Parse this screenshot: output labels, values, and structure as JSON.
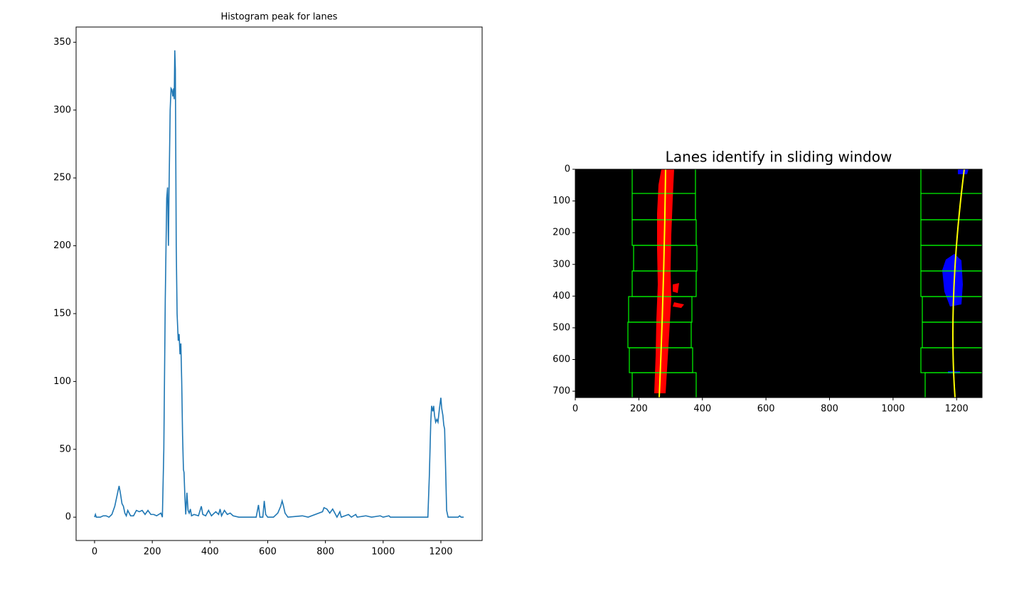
{
  "chart_data": [
    {
      "type": "line",
      "title": "Histogram peak for lanes",
      "color": "#1f77b4",
      "x": [
        0,
        3,
        6,
        20,
        30,
        40,
        50,
        60,
        70,
        80,
        85,
        90,
        95,
        100,
        105,
        110,
        115,
        120,
        125,
        135,
        145,
        155,
        165,
        175,
        185,
        195,
        205,
        215,
        230,
        235,
        240,
        245,
        250,
        253,
        256,
        258,
        262,
        265,
        268,
        271,
        274,
        276,
        278,
        280,
        283,
        286,
        290,
        293,
        296,
        299,
        302,
        305,
        308,
        310,
        313,
        316,
        320,
        324,
        328,
        332,
        336,
        345,
        360,
        370,
        375,
        385,
        395,
        405,
        420,
        430,
        435,
        440,
        450,
        460,
        470,
        480,
        500,
        560,
        568,
        573,
        583,
        588,
        593,
        600,
        620,
        635,
        645,
        650,
        655,
        660,
        670,
        720,
        740,
        790,
        795,
        805,
        815,
        825,
        830,
        840,
        850,
        855,
        880,
        890,
        905,
        910,
        940,
        960,
        990,
        1000,
        1020,
        1025,
        1155,
        1160,
        1165,
        1168,
        1172,
        1175,
        1178,
        1182,
        1186,
        1190,
        1195,
        1200,
        1203,
        1207,
        1210,
        1213,
        1216,
        1220,
        1225,
        1260,
        1265,
        1270,
        1279
      ],
      "values": [
        0,
        2,
        0,
        0,
        1,
        1,
        0,
        2,
        8,
        18,
        23,
        17,
        10,
        8,
        3,
        1,
        5,
        3,
        1,
        1,
        5,
        4,
        5,
        2,
        5,
        2,
        2,
        1,
        3,
        0,
        50,
        160,
        235,
        243,
        200,
        240,
        300,
        316,
        315,
        310,
        316,
        308,
        344,
        330,
        200,
        150,
        130,
        135,
        120,
        128,
        100,
        60,
        35,
        33,
        15,
        2,
        18,
        5,
        3,
        6,
        1,
        2,
        1,
        8,
        2,
        1,
        5,
        1,
        4,
        2,
        6,
        1,
        5,
        2,
        3,
        1,
        0,
        0,
        9,
        0,
        0,
        12,
        2,
        0,
        0,
        3,
        8,
        12,
        8,
        3,
        0,
        1,
        0,
        4,
        7,
        6,
        3,
        6,
        4,
        0,
        4,
        0,
        2,
        0,
        2,
        0,
        1,
        0,
        1,
        0,
        1,
        0,
        0,
        30,
        70,
        82,
        78,
        82,
        75,
        70,
        72,
        70,
        80,
        88,
        80,
        75,
        68,
        65,
        40,
        5,
        0,
        0,
        1,
        0,
        0
      ],
      "xlim": [
        -64,
        1343
      ],
      "ylim": [
        -17.2,
        361.2
      ],
      "xticks": [
        0,
        200,
        400,
        600,
        800,
        1000,
        1200
      ],
      "yticks": [
        0,
        50,
        100,
        150,
        200,
        250,
        300,
        350
      ]
    },
    {
      "type": "image",
      "title": "Lanes identify in sliding window",
      "xlim": [
        0,
        1280
      ],
      "ylim": [
        720,
        0
      ],
      "xticks": [
        0,
        200,
        400,
        600,
        800,
        1000,
        1200
      ],
      "yticks": [
        0,
        100,
        200,
        300,
        400,
        500,
        600,
        700
      ]
    }
  ]
}
